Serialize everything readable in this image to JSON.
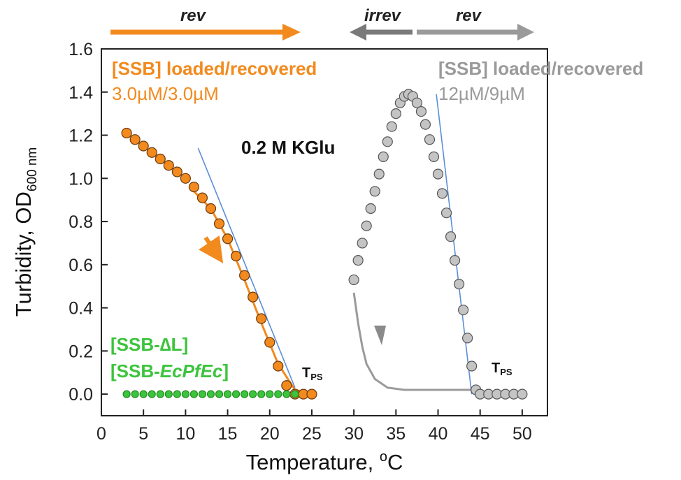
{
  "chart_data": {
    "type": "scatter",
    "xlabel": "Temperature, °C",
    "ylabel": "Turbidity, OD600 nm",
    "xlim": [
      0,
      53
    ],
    "ylim": [
      -0.1,
      1.6
    ],
    "x_ticks": [
      0,
      5,
      10,
      15,
      20,
      25,
      30,
      35,
      40,
      45,
      50
    ],
    "y_ticks": [
      0.0,
      0.2,
      0.4,
      0.6,
      0.8,
      1.0,
      1.2,
      1.4,
      1.6
    ],
    "x_tick_labels": [
      "0",
      "5",
      "10",
      "15",
      "20",
      "25",
      "30",
      "35",
      "40",
      "45",
      "50"
    ],
    "y_tick_labels": [
      "0.0",
      "0.2",
      "0.4",
      "0.6",
      "0.8",
      "1.0",
      "1.2",
      "1.4",
      "1.6"
    ],
    "annotations": {
      "condition": "0.2 M KGlu",
      "left_label": "[SSB] loaded/recovered",
      "left_conc": "3.0µM/3.0µM",
      "right_label": "[SSB] loaded/recovered",
      "right_conc": "12µM/9µM",
      "mutant_1": "[SSB-∆L]",
      "mutant_2_prefix": "[SSB-",
      "mutant_2_italic": "EcPfEc",
      "mutant_2_suffix": "]",
      "tps_main": "T",
      "tps_sub": "PS",
      "arrow_rev_left": "rev",
      "arrow_irrev": "irrev",
      "arrow_rev_right": "rev"
    },
    "colors": {
      "orange": "#f28a1e",
      "gray": "#9a9a9a",
      "dark_gray": "#7a7a7a",
      "green": "#3cc43c",
      "blue": "#5b8fd6"
    },
    "series": [
      {
        "color": "orange",
        "marker": "circle",
        "points": [
          [
            3.0,
            1.21
          ],
          [
            4,
            1.18
          ],
          [
            5,
            1.15
          ],
          [
            6,
            1.12
          ],
          [
            7,
            1.09
          ],
          [
            8,
            1.06
          ],
          [
            9,
            1.03
          ],
          [
            10,
            1.0
          ],
          [
            11,
            0.96
          ],
          [
            12,
            0.91
          ],
          [
            13,
            0.86
          ],
          [
            14,
            0.79
          ],
          [
            15,
            0.72
          ],
          [
            16,
            0.64
          ],
          [
            17,
            0.55
          ],
          [
            18,
            0.45
          ],
          [
            19,
            0.35
          ],
          [
            20,
            0.24
          ],
          [
            21,
            0.13
          ],
          [
            22,
            0.04
          ],
          [
            23,
            0.0
          ],
          [
            24,
            0.0
          ],
          [
            25,
            0.0
          ]
        ]
      },
      {
        "color": "green",
        "marker": "circle",
        "points": [
          [
            3,
            0.0
          ],
          [
            4,
            0.0
          ],
          [
            5,
            0.0
          ],
          [
            6,
            0.0
          ],
          [
            7,
            0.0
          ],
          [
            8,
            0.0
          ],
          [
            9,
            0.0
          ],
          [
            10,
            0.0
          ],
          [
            11,
            0.0
          ],
          [
            12,
            0.0
          ],
          [
            13,
            0.0
          ],
          [
            14,
            0.0
          ],
          [
            15,
            0.0
          ],
          [
            16,
            0.0
          ],
          [
            17,
            0.0
          ],
          [
            18,
            0.0
          ],
          [
            19,
            0.0
          ],
          [
            20,
            0.0
          ],
          [
            21,
            0.0
          ],
          [
            22,
            0.0
          ],
          [
            23,
            0.0
          ]
        ]
      },
      {
        "color": "gray",
        "marker": "circle",
        "points": [
          [
            30,
            0.53
          ],
          [
            30.5,
            0.62
          ],
          [
            31,
            0.7
          ],
          [
            31.5,
            0.78
          ],
          [
            32,
            0.86
          ],
          [
            32.5,
            0.94
          ],
          [
            33,
            1.02
          ],
          [
            33.5,
            1.1
          ],
          [
            34,
            1.17
          ],
          [
            34.5,
            1.24
          ],
          [
            35,
            1.3
          ],
          [
            35.5,
            1.35
          ],
          [
            36,
            1.38
          ],
          [
            36.5,
            1.39
          ],
          [
            37,
            1.38
          ],
          [
            37.5,
            1.35
          ],
          [
            38,
            1.31
          ],
          [
            38.5,
            1.25
          ],
          [
            39,
            1.18
          ],
          [
            39.5,
            1.1
          ],
          [
            40,
            1.02
          ],
          [
            40.5,
            0.93
          ],
          [
            41,
            0.84
          ],
          [
            41.5,
            0.73
          ],
          [
            42,
            0.62
          ],
          [
            42.5,
            0.51
          ],
          [
            43,
            0.39
          ],
          [
            43.5,
            0.26
          ],
          [
            44,
            0.13
          ],
          [
            44.5,
            0.02
          ],
          [
            45,
            0.0
          ],
          [
            46,
            0.0
          ],
          [
            47,
            0.0
          ],
          [
            48,
            0.0
          ],
          [
            49,
            0.0
          ],
          [
            50,
            0.0
          ]
        ]
      },
      {
        "color": "gray",
        "marker": "none",
        "line": [
          [
            30,
            0.47
          ],
          [
            30.5,
            0.33
          ],
          [
            31,
            0.22
          ],
          [
            31.5,
            0.14
          ],
          [
            32.5,
            0.07
          ],
          [
            34,
            0.03
          ],
          [
            36,
            0.02
          ],
          [
            40,
            0.02
          ],
          [
            44,
            0.02
          ]
        ]
      },
      {
        "color": "orange",
        "marker": "none",
        "line": [
          [
            11,
            0.94
          ],
          [
            13,
            0.86
          ],
          [
            15,
            0.72
          ],
          [
            17,
            0.53
          ],
          [
            19,
            0.33
          ],
          [
            21,
            0.14
          ],
          [
            23,
            0.02
          ],
          [
            25,
            0.0
          ]
        ]
      },
      {
        "color": "blue",
        "marker": "none",
        "line": [
          [
            11.5,
            1.14
          ],
          [
            23,
            0.03
          ]
        ]
      },
      {
        "color": "blue",
        "marker": "none",
        "line": [
          [
            39.8,
            1.39
          ],
          [
            44,
            0.0
          ]
        ]
      }
    ]
  }
}
